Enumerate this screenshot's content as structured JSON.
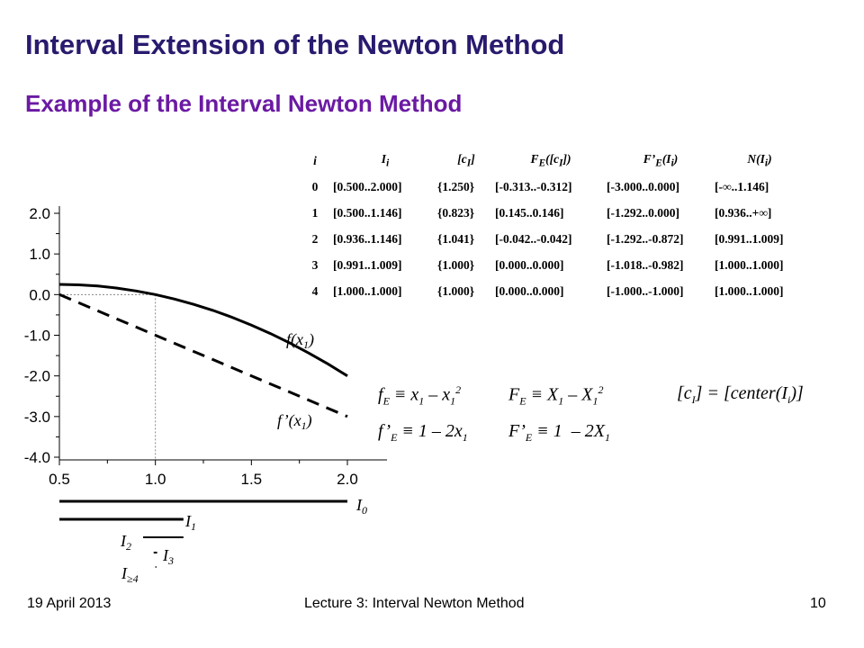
{
  "slide": {
    "title": "Interval Extension of the Newton Method",
    "subtitle": "Example of the Interval Newton Method"
  },
  "table": {
    "headers": [
      "i",
      "Ii",
      "[cI]",
      "FE([cI])",
      "F’E(Ii)",
      "N(Ii)"
    ],
    "rows": [
      [
        "0",
        "[0.500..2.000]",
        "{1.250}",
        "[-0.313..-0.312]",
        "[-3.000..0.000]",
        "[-∞..1.146]"
      ],
      [
        "1",
        "[0.500..1.146]",
        "{0.823}",
        "[0.145..0.146]",
        "[-1.292..0.000]",
        "[0.936..+∞]"
      ],
      [
        "2",
        "[0.936..1.146]",
        "{1.041}",
        "[-0.042..-0.042]",
        "[-1.292..-0.872]",
        "[0.991..1.009]"
      ],
      [
        "3",
        "[0.991..1.009]",
        "{1.000}",
        "[0.000..0.000]",
        "[-1.018..-0.982]",
        "[1.000..1.000]"
      ],
      [
        "4",
        "[1.000..1.000]",
        "{1.000}",
        "[0.000..0.000]",
        "[-1.000..-1.000]",
        "[1.000..1.000]"
      ]
    ]
  },
  "formulas": {
    "fe": "f_E ≡ x₁ – x₁²",
    "fpe": "f’_E ≡ 1 – 2x₁",
    "FE": "F_E ≡ X₁ – X₁²",
    "FpE": "F’_E ≡ 1 – 2X₁",
    "center": "[c_I] = [center(I_i)]"
  },
  "chart_data": {
    "type": "line",
    "x_ticks": [
      "0.5",
      "1.0",
      "1.5",
      "2.0"
    ],
    "y_ticks": [
      "2.0",
      "1.0",
      "0.0",
      "-1.0",
      "-2.0",
      "-3.0",
      "-4.0"
    ],
    "xlim": [
      0.5,
      2.0
    ],
    "ylim": [
      -4.0,
      2.0
    ],
    "series": [
      {
        "name": "f(x1)",
        "style": "solid",
        "x": [
          0.5,
          0.6,
          0.7,
          0.8,
          0.9,
          1.0,
          1.1,
          1.2,
          1.3,
          1.4,
          1.5,
          1.6,
          1.7,
          1.8,
          1.9,
          2.0
        ],
        "y": [
          0.25,
          0.24,
          0.21,
          0.16,
          0.09,
          0.0,
          -0.11,
          -0.24,
          -0.39,
          -0.56,
          -0.75,
          -0.96,
          -1.19,
          -1.44,
          -1.71,
          -2.0
        ]
      },
      {
        "name": "f’(x1)",
        "style": "dashed",
        "x": [
          0.5,
          2.0
        ],
        "y": [
          0.0,
          -3.0
        ]
      }
    ],
    "guides": {
      "x": 1.0,
      "y": 0.0
    },
    "intervals": [
      {
        "label": "I0",
        "lo": 0.5,
        "hi": 2.0
      },
      {
        "label": "I1",
        "lo": 0.5,
        "hi": 1.146
      },
      {
        "label": "I2",
        "lo": 0.936,
        "hi": 1.146
      },
      {
        "label": "I3",
        "lo": 0.991,
        "hi": 1.009
      },
      {
        "label": "I≥4",
        "lo": 1.0,
        "hi": 1.0
      }
    ]
  },
  "footer": {
    "date": "19 April 2013",
    "lecture": "Lecture 3: Interval Newton Method",
    "page": "10"
  }
}
